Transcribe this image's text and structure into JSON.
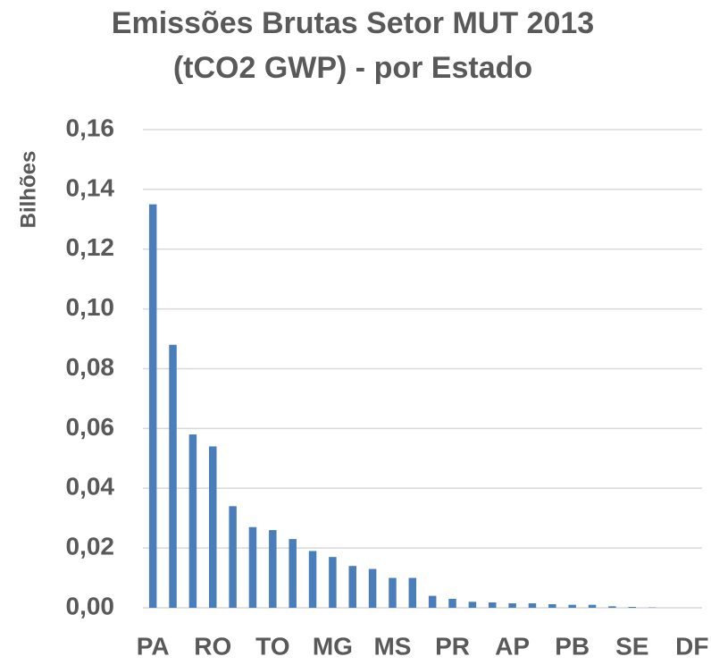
{
  "chart_data": {
    "type": "bar",
    "title": [
      "Emissões Brutas Setor MUT 2013",
      "(tCO2 GWP) - por Estado"
    ],
    "y_label": "Bilhões",
    "categories": [
      "PA",
      null,
      null,
      "RO",
      null,
      null,
      "TO",
      null,
      null,
      "MG",
      null,
      null,
      "MS",
      null,
      null,
      "PR",
      null,
      null,
      "AP",
      null,
      null,
      "PB",
      null,
      null,
      "SE",
      null,
      null,
      "DF"
    ],
    "values": [
      0.135,
      0.088,
      0.058,
      0.054,
      0.034,
      0.027,
      0.026,
      0.023,
      0.019,
      0.017,
      0.014,
      0.013,
      0.01,
      0.01,
      0.004,
      0.003,
      0.002,
      0.0018,
      0.0015,
      0.0015,
      0.0012,
      0.001,
      0.001,
      0.0005,
      0.0003,
      0.0001,
      0,
      0
    ],
    "color": "#4a7ebb",
    "ylim": [
      0,
      0.16
    ],
    "yticks": [
      {
        "value": 0,
        "label": "0,00"
      },
      {
        "value": 0.02,
        "label": "0,02"
      },
      {
        "value": 0.04,
        "label": "0,04"
      },
      {
        "value": 0.06,
        "label": "0,06"
      },
      {
        "value": 0.08,
        "label": "0,08"
      },
      {
        "value": 0.1,
        "label": "0,10"
      },
      {
        "value": 0.12,
        "label": "0,12"
      },
      {
        "value": 0.14,
        "label": "0,14"
      },
      {
        "value": 0.16,
        "label": "0,16"
      }
    ],
    "grid": true
  }
}
